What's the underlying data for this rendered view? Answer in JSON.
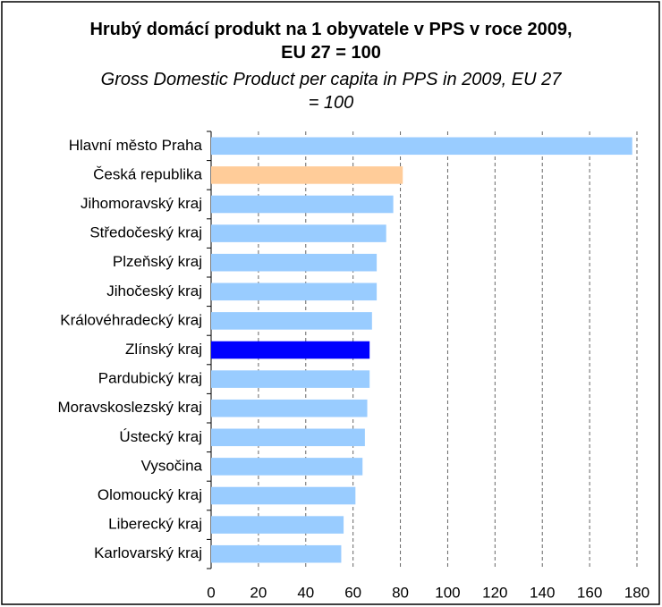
{
  "chart_data": {
    "type": "bar",
    "orientation": "horizontal",
    "title": "Hrubý domácí produkt na 1 obyvatele v PPS v roce 2009, EU 27 = 100",
    "subtitle": "Gross Domestic Product per capita in PPS in 2009, EU 27 = 100",
    "categories": [
      "Hlavní město Praha",
      "Česká republika",
      "Jihomoravský kraj",
      "Středočeský kraj",
      "Plzeňský kraj",
      "Jihočeský kraj",
      "Královéhradecký kraj",
      "Zlínský kraj",
      "Pardubický kraj",
      "Moravskoslezský kraj",
      "Ústecký kraj",
      "Vysočina",
      "Olomoucký kraj",
      "Liberecký kraj",
      "Karlovarský kraj"
    ],
    "values": [
      178,
      81,
      77,
      74,
      70,
      70,
      68,
      67,
      67,
      66,
      65,
      64,
      61,
      56,
      55
    ],
    "colors": [
      "#99ccff",
      "#ffcc99",
      "#99ccff",
      "#99ccff",
      "#99ccff",
      "#99ccff",
      "#99ccff",
      "#0000ff",
      "#99ccff",
      "#99ccff",
      "#99ccff",
      "#99ccff",
      "#99ccff",
      "#99ccff",
      "#99ccff"
    ],
    "xlim": [
      0,
      180
    ],
    "xticks": [
      0,
      20,
      40,
      60,
      80,
      100,
      120,
      140,
      160,
      180
    ],
    "grid": true
  }
}
